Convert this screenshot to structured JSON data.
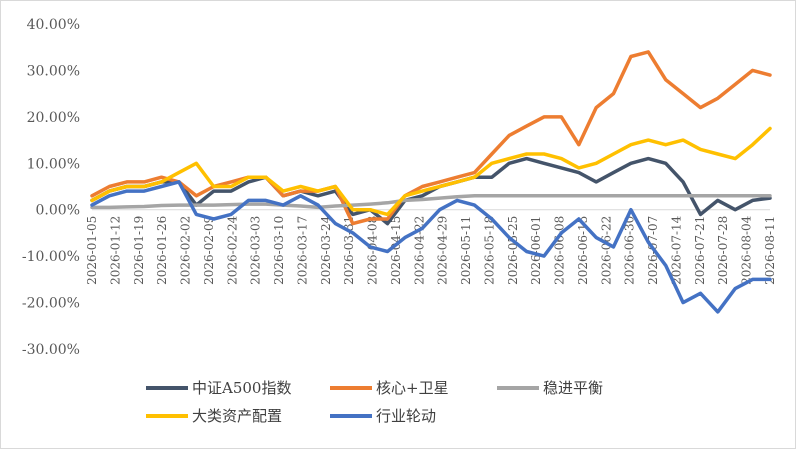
{
  "chart_data": {
    "type": "line",
    "ylim": [
      -30,
      40
    ],
    "yticks": [
      40,
      30,
      20,
      10,
      0,
      -10,
      -20,
      -30
    ],
    "ytick_labels": [
      "40.00%",
      "30.00%",
      "20.00%",
      "10.00%",
      "0.00%",
      "-10.00%",
      "-20.00%",
      "-30.00%"
    ],
    "grid": false,
    "legend_position": "bottom",
    "xtick_labels": [
      "2026-01-05",
      "2026-01-12",
      "2026-01-19",
      "2026-01-26",
      "2026-02-02",
      "2026-02-09",
      "2026-02-24",
      "2026-03-03",
      "2026-03-10",
      "2026-03-17",
      "2026-03-24",
      "2026-03-31",
      "2026-04-08",
      "2026-04-15",
      "2026-04-22",
      "2026-04-29",
      "2026-05-11",
      "2026-05-18",
      "2026-05-25",
      "2026-06-01",
      "2026-06-08",
      "2026-06-15",
      "2026-06-22",
      "2026-06-30",
      "2026-07-07",
      "2026-07-14",
      "2026-07-21",
      "2026-07-28",
      "2026-08-04",
      "2026-08-11"
    ],
    "series": [
      {
        "name": "中证A500指数",
        "color": "#44546A",
        "values": [
          2,
          4,
          5,
          5,
          6,
          6,
          1,
          4,
          4,
          6,
          7,
          3,
          4,
          3,
          4,
          -1,
          0,
          -3,
          2,
          3,
          5,
          6,
          7,
          7,
          10,
          11,
          10,
          9,
          8,
          6,
          8,
          10,
          11,
          10,
          6,
          -1,
          2,
          0,
          2,
          2.5
        ]
      },
      {
        "name": "核心+卫星",
        "color": "#ED7D31",
        "values": [
          3,
          5,
          6,
          6,
          7,
          6,
          3,
          5,
          6,
          7,
          7,
          3,
          4,
          4,
          5,
          -3,
          -2,
          -2,
          3,
          5,
          6,
          7,
          8,
          12,
          16,
          18,
          20,
          20,
          14,
          22,
          25,
          33,
          34,
          28,
          25,
          22,
          24,
          27,
          30,
          29
        ]
      },
      {
        "name": "稳进平衡",
        "color": "#A5A5A5",
        "values": [
          0.5,
          0.5,
          0.6,
          0.7,
          0.9,
          1,
          1,
          1,
          1.1,
          1.2,
          1.2,
          1,
          0.8,
          0.5,
          0.8,
          1,
          1.2,
          1.5,
          2,
          2.2,
          2.5,
          2.8,
          3,
          3,
          3,
          3,
          3,
          3,
          3,
          3,
          3,
          3,
          3,
          3,
          3,
          3,
          3,
          3,
          3,
          3
        ]
      },
      {
        "name": "大类资产配置",
        "color": "#FFC000",
        "values": [
          2,
          4,
          5,
          5,
          6,
          8,
          10,
          5,
          5,
          7,
          7,
          4,
          5,
          4,
          5,
          0,
          0,
          -1,
          3,
          4,
          5,
          6,
          7,
          10,
          11,
          12,
          12,
          11,
          9,
          10,
          12,
          14,
          15,
          14,
          15,
          13,
          12,
          11,
          14,
          17.5
        ]
      },
      {
        "name": "行业轮动",
        "color": "#4472C4",
        "values": [
          1,
          3,
          4,
          4,
          5,
          6,
          -1,
          -2,
          -1,
          2,
          2,
          1,
          3,
          1,
          -3,
          -5,
          -8,
          -9,
          -6,
          -4,
          0,
          2,
          1,
          -2,
          -6,
          -9,
          -10,
          -5,
          -2,
          -6,
          -8,
          0,
          -7,
          -12,
          -20,
          -18,
          -22,
          -17,
          -15,
          -15
        ]
      }
    ],
    "legend_rows": [
      [
        "中证A500指数",
        "核心+卫星",
        "稳进平衡"
      ],
      [
        "大类资产配置",
        "行业轮动"
      ]
    ]
  }
}
